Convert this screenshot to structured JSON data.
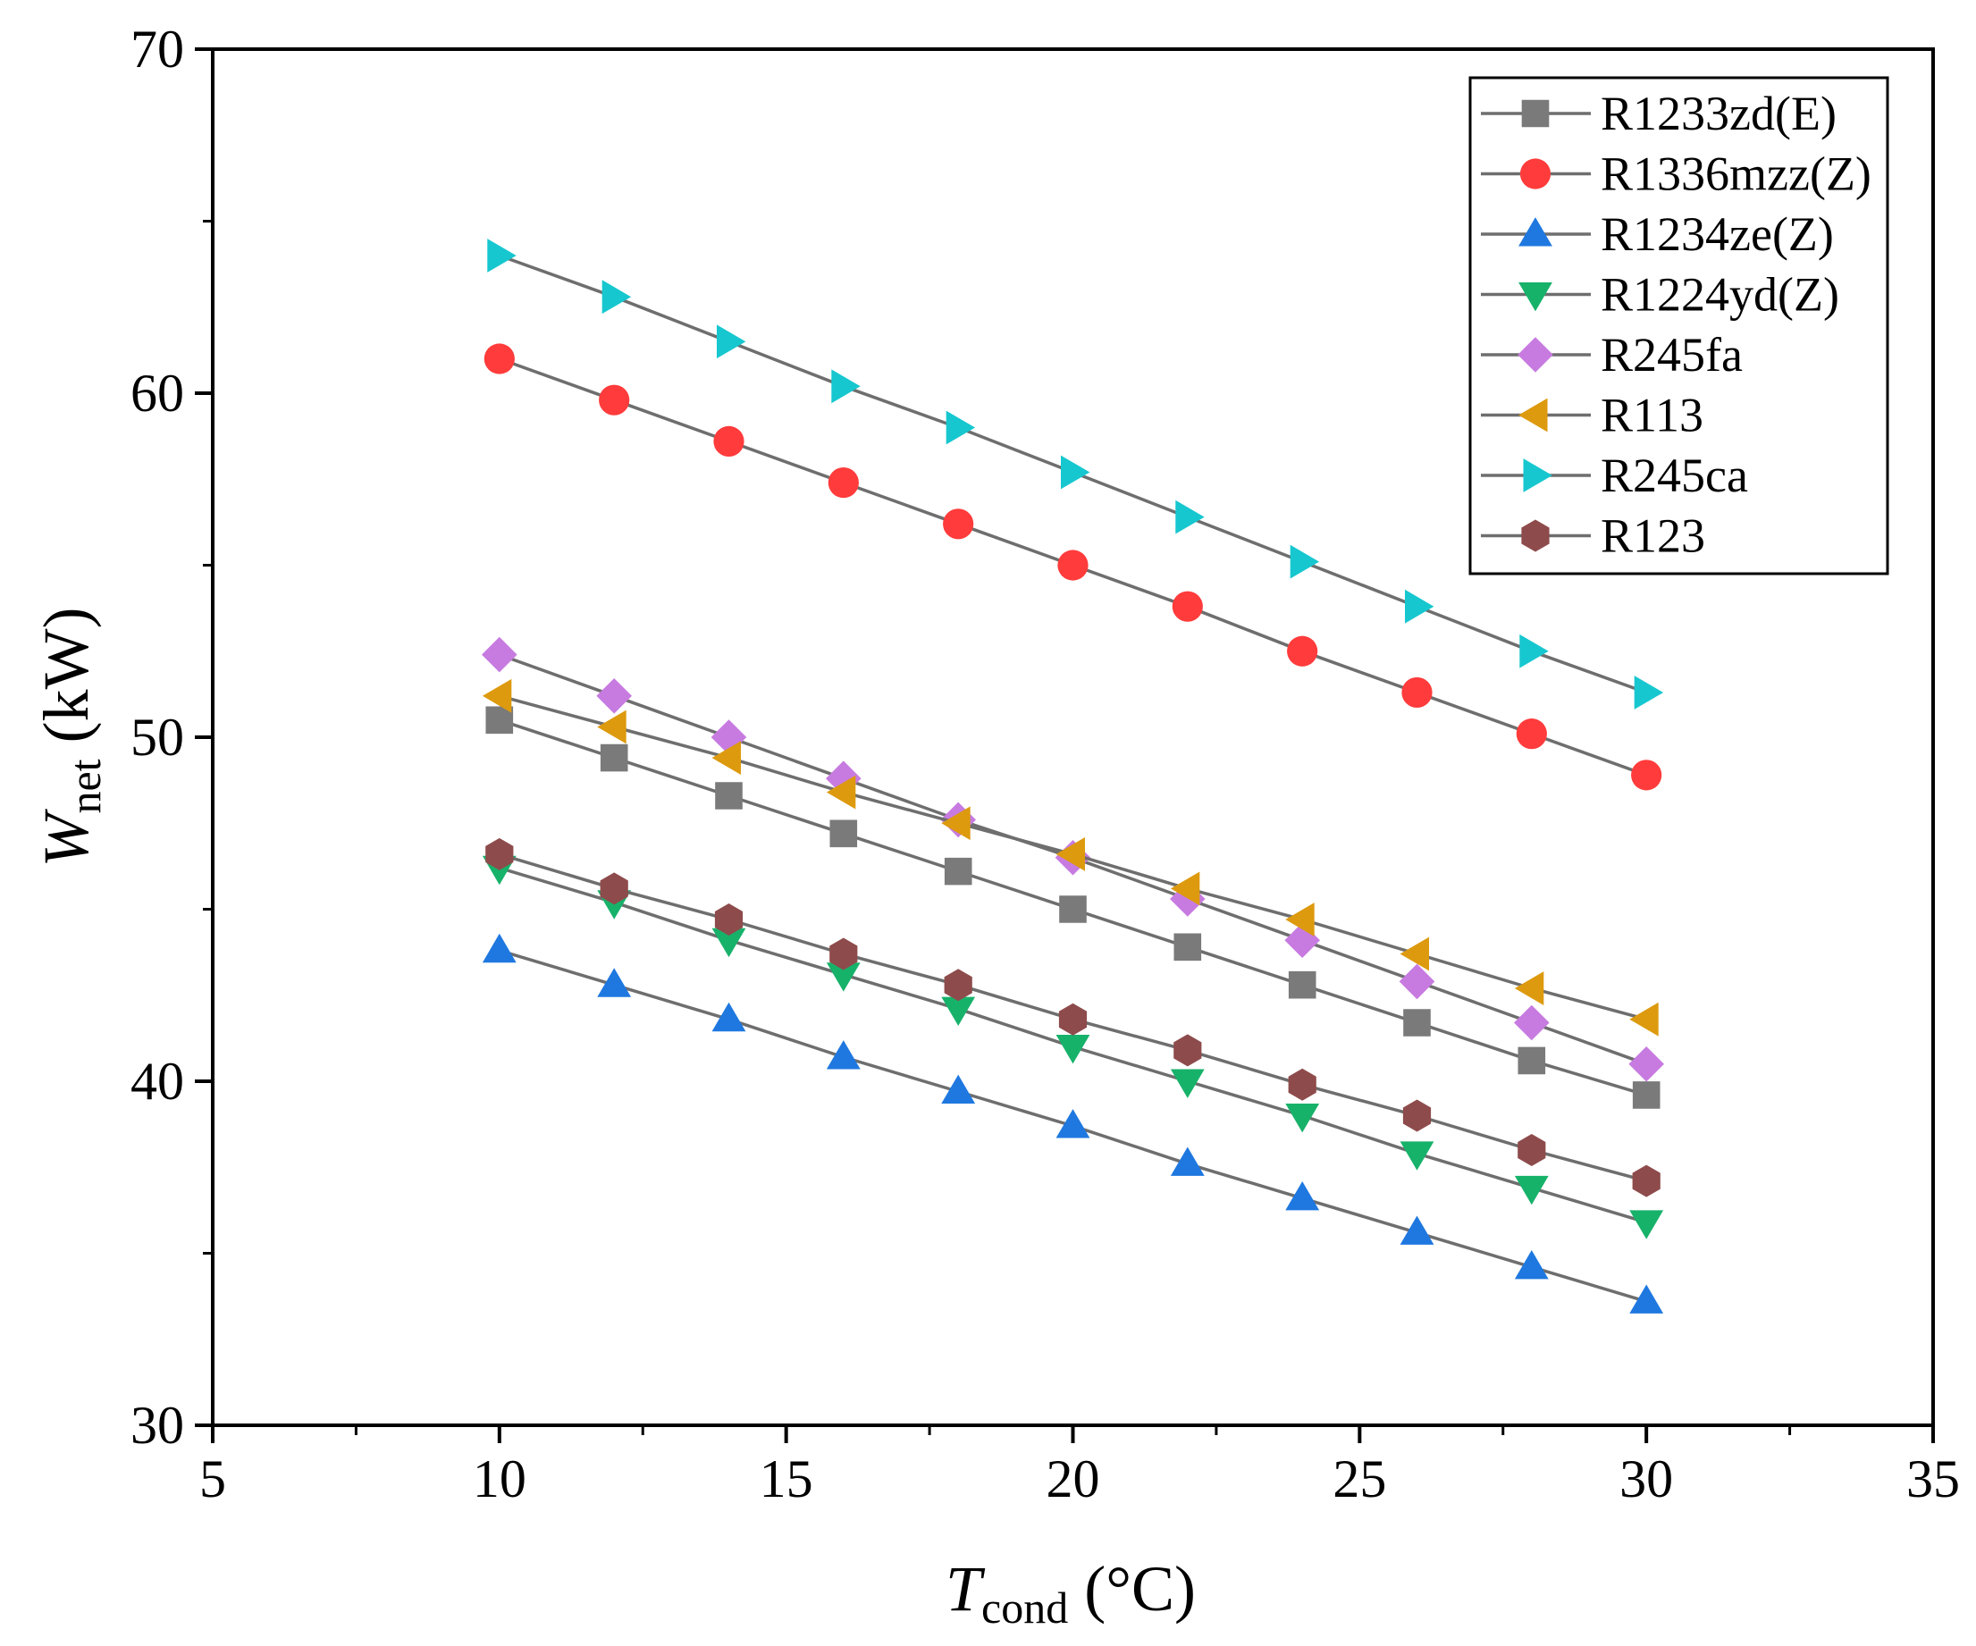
{
  "chart_data": {
    "type": "line",
    "xlabel": {
      "main": "T",
      "sub": "cond",
      "unit": " (°C)"
    },
    "ylabel": {
      "main": "W",
      "sub": "net",
      "unit": " (kW)"
    },
    "xlim": [
      5,
      35
    ],
    "ylim": [
      30,
      70
    ],
    "xticks": [
      5,
      10,
      15,
      20,
      25,
      30,
      35
    ],
    "yticks": [
      30,
      40,
      50,
      60,
      70
    ],
    "grid": false,
    "legend_position": "top-right",
    "line_color": "#6e6e6e",
    "x": [
      10,
      12,
      14,
      16,
      18,
      20,
      22,
      24,
      26,
      28,
      30
    ],
    "series": [
      {
        "name": "R1233zd(E)",
        "marker": "square",
        "color": "#7a7a7a",
        "values": [
          50.5,
          49.4,
          48.3,
          47.2,
          46.1,
          45.0,
          43.9,
          42.8,
          41.7,
          40.6,
          39.6
        ]
      },
      {
        "name": "R1336mzz(Z)",
        "marker": "circle",
        "color": "#ff3b3b",
        "values": [
          61.0,
          59.8,
          58.6,
          57.4,
          56.2,
          55.0,
          53.8,
          52.5,
          51.3,
          50.1,
          48.9
        ]
      },
      {
        "name": "R1234ze(Z)",
        "marker": "triangle-up",
        "color": "#1f78e0",
        "values": [
          43.8,
          42.8,
          41.8,
          40.7,
          39.7,
          38.7,
          37.6,
          36.6,
          35.6,
          34.6,
          33.6
        ]
      },
      {
        "name": "R1224yd(Z)",
        "marker": "triangle-down",
        "color": "#17b26a",
        "values": [
          46.2,
          45.2,
          44.1,
          43.1,
          42.1,
          41.0,
          40.0,
          39.0,
          37.9,
          36.9,
          35.9
        ]
      },
      {
        "name": "R245fa",
        "marker": "diamond",
        "color": "#c77be0",
        "values": [
          52.4,
          51.2,
          50.0,
          48.8,
          47.6,
          46.5,
          45.3,
          44.1,
          42.9,
          41.7,
          40.5
        ]
      },
      {
        "name": "R113",
        "marker": "triangle-left",
        "color": "#dd9a0e",
        "values": [
          51.2,
          50.3,
          49.4,
          48.4,
          47.5,
          46.6,
          45.6,
          44.7,
          43.7,
          42.7,
          41.8
        ]
      },
      {
        "name": "R245ca",
        "marker": "triangle-right",
        "color": "#17c7cf",
        "values": [
          64.0,
          62.8,
          61.5,
          60.2,
          59.0,
          57.7,
          56.4,
          55.1,
          53.8,
          52.5,
          51.3
        ]
      },
      {
        "name": "R123",
        "marker": "hexagon",
        "color": "#8e4b4b",
        "values": [
          46.6,
          45.6,
          44.7,
          43.7,
          42.8,
          41.8,
          40.9,
          39.9,
          39.0,
          38.0,
          37.1
        ]
      }
    ]
  }
}
